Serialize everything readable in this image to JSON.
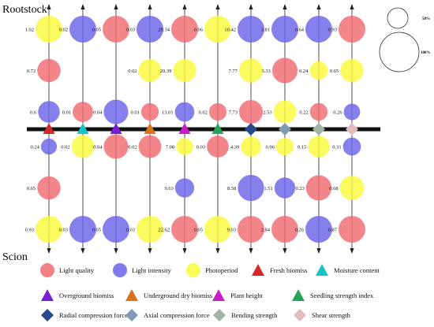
{
  "chart_data": {
    "type": "scatter",
    "top_label": "Rootstock",
    "bottom_label": "Scion",
    "size_legend": [
      "50%",
      "100%"
    ],
    "series": [
      {
        "name": "Light quality",
        "color": "#f06b72",
        "shape": "circle"
      },
      {
        "name": "Light intensity",
        "color": "#6a64e8",
        "shape": "circle"
      },
      {
        "name": "Photoperiod",
        "color": "#fafa3c",
        "shape": "circle"
      }
    ],
    "columns": [
      {
        "name": "Fresh biomiss",
        "color": "#d62828",
        "shape": "triangle"
      },
      {
        "name": "Moisture content",
        "color": "#18c4c4",
        "shape": "triangle"
      },
      {
        "name": "Overground biomiss",
        "color": "#7a1ed6",
        "shape": "triangle"
      },
      {
        "name": "Underground dry biomiss",
        "color": "#d9731c",
        "shape": "triangle"
      },
      {
        "name": "Plant height",
        "color": "#c81ec8",
        "shape": "triangle"
      },
      {
        "name": "Seedling strength index",
        "color": "#27a35b",
        "shape": "triangle"
      },
      {
        "name": "Radial compression force",
        "color": "#284a8c",
        "shape": "diamond"
      },
      {
        "name": "Axial compression force",
        "color": "#7f9bb5",
        "shape": "diamond"
      },
      {
        "name": "Bending strength",
        "color": "#a3b3a2",
        "shape": "diamond"
      },
      {
        "name": "Shear strength",
        "color": "#e5bcbc",
        "shape": "diamond"
      }
    ],
    "rootstock_values": [
      {
        "column": 0,
        "factor": "Photoperiod",
        "value": 1.02
      },
      {
        "column": 0,
        "factor": "Light quality",
        "value": 0.72
      },
      {
        "column": 0,
        "factor": "Light intensity",
        "value": 0.6
      },
      {
        "column": 1,
        "factor": "Light intensity",
        "value": 0.02
      },
      {
        "column": 1,
        "factor": "Light quality",
        "value": 0.01
      },
      {
        "column": 2,
        "factor": "Light quality",
        "value": 0.05
      },
      {
        "column": 2,
        "factor": "Light intensity",
        "value": 0.04
      },
      {
        "column": 3,
        "factor": "Light intensity",
        "value": 0.03
      },
      {
        "column": 3,
        "factor": "Photoperiod",
        "value": 0.02
      },
      {
        "column": 3,
        "factor": "Light quality",
        "value": 0.01
      },
      {
        "column": 4,
        "factor": "Light quality",
        "value": 29.34
      },
      {
        "column": 4,
        "factor": "Photoperiod",
        "value": 20.39
      },
      {
        "column": 4,
        "factor": "Light intensity",
        "value": 13.01
      },
      {
        "column": 5,
        "factor": "Photoperiod",
        "value": 0.06
      },
      {
        "column": 5,
        "factor": "Light quality",
        "value": 0.02
      },
      {
        "column": 6,
        "factor": "Light intensity",
        "value": 10.42
      },
      {
        "column": 6,
        "factor": "Photoperiod",
        "value": 7.77
      },
      {
        "column": 6,
        "factor": "Light quality",
        "value": 7.73
      },
      {
        "column": 7,
        "factor": "Light intensity",
        "value": 3.81
      },
      {
        "column": 7,
        "factor": "Light quality",
        "value": 3.33
      },
      {
        "column": 7,
        "factor": "Photoperiod",
        "value": 2.53
      },
      {
        "column": 8,
        "factor": "Light intensity",
        "value": 0.64
      },
      {
        "column": 8,
        "factor": "Photoperiod",
        "value": 0.24
      },
      {
        "column": 8,
        "factor": "Light quality",
        "value": 0.22
      },
      {
        "column": 9,
        "factor": "Light quality",
        "value": 0.93
      },
      {
        "column": 9,
        "factor": "Photoperiod",
        "value": 0.65
      },
      {
        "column": 9,
        "factor": "Light intensity",
        "value": 0.26
      }
    ],
    "scion_values": [
      {
        "column": 0,
        "factor": "Light intensity",
        "value": 0.24
      },
      {
        "column": 0,
        "factor": "Light quality",
        "value": 0.65
      },
      {
        "column": 0,
        "factor": "Photoperiod",
        "value": 0.93
      },
      {
        "column": 1,
        "factor": "Photoperiod",
        "value": 0.02
      },
      {
        "column": 1,
        "factor": "Light intensity",
        "value": 0.03
      },
      {
        "column": 2,
        "factor": "Light quality",
        "value": 0.04
      },
      {
        "column": 2,
        "factor": "Light intensity",
        "value": 0.05
      },
      {
        "column": 3,
        "factor": "Light quality",
        "value": 0.02
      },
      {
        "column": 3,
        "factor": "Photoperiod",
        "value": 0.03
      },
      {
        "column": 4,
        "factor": "Photoperiod",
        "value": 7.08
      },
      {
        "column": 4,
        "factor": "Light intensity",
        "value": 9.63
      },
      {
        "column": 4,
        "factor": "Light quality",
        "value": 22.62
      },
      {
        "column": 5,
        "factor": "Light quality",
        "value": 0.03
      },
      {
        "column": 5,
        "factor": "Photoperiod",
        "value": 0.05
      },
      {
        "column": 6,
        "factor": "Photoperiod",
        "value": 4.39
      },
      {
        "column": 6,
        "factor": "Light intensity",
        "value": 8.58
      },
      {
        "column": 6,
        "factor": "Light quality",
        "value": 9.03
      },
      {
        "column": 7,
        "factor": "Photoperiod",
        "value": 0.96
      },
      {
        "column": 7,
        "factor": "Light intensity",
        "value": 1.51
      },
      {
        "column": 7,
        "factor": "Light quality",
        "value": 2.84
      },
      {
        "column": 8,
        "factor": "Photoperiod",
        "value": 0.15
      },
      {
        "column": 8,
        "factor": "Light quality",
        "value": 0.23
      },
      {
        "column": 8,
        "factor": "Light intensity",
        "value": 0.26
      },
      {
        "column": 9,
        "factor": "Light intensity",
        "value": 0.31
      },
      {
        "column": 9,
        "factor": "Photoperiod",
        "value": 0.68
      },
      {
        "column": 9,
        "factor": "Light quality",
        "value": 0.87
      }
    ]
  }
}
